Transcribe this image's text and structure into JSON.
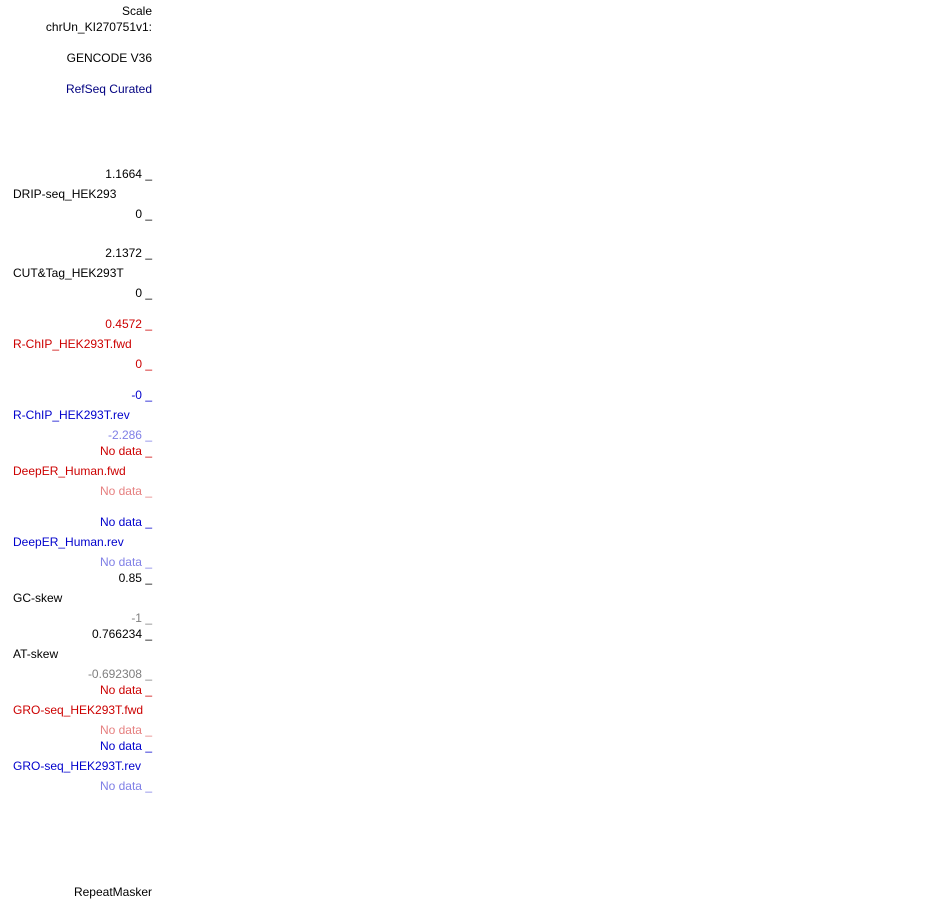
{
  "colors": {
    "black": "#000000",
    "navy": "#000080",
    "red": "#cc0000",
    "light_red": "#e67f7f",
    "blue": "#0000cc",
    "light_blue": "#7f7fe6",
    "gray": "#7f7f7f"
  },
  "header": {
    "scale_label": "Scale",
    "chrom_label": "chrUn_KI270751v1:"
  },
  "tracks": {
    "gencode": {
      "label": "GENCODE V36"
    },
    "refseq": {
      "label": "RefSeq Curated"
    },
    "drip": {
      "max": "1.1664 _",
      "name": "DRIP-seq_HEK293",
      "min": "0 _"
    },
    "cuttag": {
      "max": "2.1372 _",
      "name": "CUT&Tag_HEK293T",
      "min": "0 _"
    },
    "rchip_fwd": {
      "max": "0.4572 _",
      "name": "R-ChIP_HEK293T.fwd",
      "min": "0 _"
    },
    "rchip_rev": {
      "max": "-0 _",
      "name": "R-ChIP_HEK293T.rev",
      "min": "-2.286 _"
    },
    "deeper_fwd": {
      "max": "No data _",
      "name": "DeepER_Human.fwd",
      "min": "No data _"
    },
    "deeper_rev": {
      "max": "No data _",
      "name": "DeepER_Human.rev",
      "min": "No data _"
    },
    "gc_skew": {
      "max": "0.85 _",
      "name": "GC-skew",
      "min": "-1 _"
    },
    "at_skew": {
      "max": "0.766234 _",
      "name": "AT-skew",
      "min": "-0.692308 _"
    },
    "gro_fwd": {
      "max": "No data _",
      "name": "GRO-seq_HEK293T.fwd",
      "min": "No data _"
    },
    "gro_rev": {
      "max": "No data _",
      "name": "GRO-seq_HEK293T.rev",
      "min": "No data _"
    },
    "repeatmasker": {
      "label": "RepeatMasker"
    }
  }
}
